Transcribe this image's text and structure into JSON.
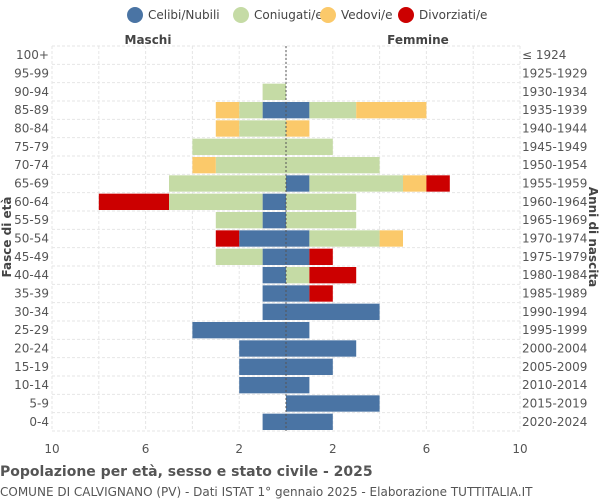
{
  "footer": {
    "title": "Popolazione per età, sesso e stato civile - 2025",
    "subtitle": "COMUNE DI CALVIGNANO (PV) - Dati ISTAT 1° gennaio 2025 - Elaborazione TUTTITALIA.IT"
  },
  "chart_data": {
    "type": "bar",
    "orientation": "horizontal-population-pyramid",
    "left_label": "Maschi",
    "right_label": "Femmine",
    "ylabel_left": "Fasce di età",
    "ylabel_right": "Anni di nascita",
    "xlim": [
      -10,
      10
    ],
    "x_ticks": [
      -10,
      -6,
      -2,
      2,
      6,
      10
    ],
    "x_tick_labels": [
      "10",
      "6",
      "2",
      "2",
      "6",
      "10"
    ],
    "grid": true,
    "legend_position": "top",
    "colors": {
      "Celibi/Nubili": "#4a74a4",
      "Coniugati/e": "#c5dba5",
      "Vedovi/e": "#fbc96a",
      "Divorziati/e": "#cc0000"
    },
    "series_order": [
      "Celibi/Nubili",
      "Coniugati/e",
      "Vedovi/e",
      "Divorziati/e"
    ],
    "age_groups": [
      "100+",
      "95-99",
      "90-94",
      "85-89",
      "80-84",
      "75-79",
      "70-74",
      "65-69",
      "60-64",
      "55-59",
      "50-54",
      "45-49",
      "40-44",
      "35-39",
      "30-34",
      "25-29",
      "20-24",
      "15-19",
      "10-14",
      "5-9",
      "0-4"
    ],
    "birth_years": [
      "≤ 1924",
      "1925-1929",
      "1930-1934",
      "1935-1939",
      "1940-1944",
      "1945-1949",
      "1950-1954",
      "1955-1959",
      "1960-1964",
      "1965-1969",
      "1970-1974",
      "1975-1979",
      "1980-1984",
      "1985-1989",
      "1990-1994",
      "1995-1999",
      "2000-2004",
      "2005-2009",
      "2010-2014",
      "2015-2019",
      "2020-2024"
    ],
    "males": {
      "Celibi/Nubili": [
        0,
        0,
        0,
        1,
        0,
        0,
        0,
        0,
        1,
        1,
        2,
        1,
        1,
        1,
        1,
        4,
        2,
        2,
        2,
        0,
        1
      ],
      "Coniugati/e": [
        0,
        0,
        1,
        1,
        2,
        4,
        3,
        5,
        4,
        2,
        0,
        2,
        0,
        0,
        0,
        0,
        0,
        0,
        0,
        0,
        0
      ],
      "Vedovi/e": [
        0,
        0,
        0,
        1,
        1,
        0,
        1,
        0,
        0,
        0,
        0,
        0,
        0,
        0,
        0,
        0,
        0,
        0,
        0,
        0,
        0
      ],
      "Divorziati/e": [
        0,
        0,
        0,
        0,
        0,
        0,
        0,
        0,
        3,
        0,
        1,
        0,
        0,
        0,
        0,
        0,
        0,
        0,
        0,
        0,
        0
      ]
    },
    "females": {
      "Celibi/Nubili": [
        0,
        0,
        0,
        1,
        0,
        0,
        0,
        1,
        0,
        0,
        1,
        1,
        0,
        1,
        4,
        1,
        3,
        2,
        1,
        4,
        2
      ],
      "Coniugati/e": [
        0,
        0,
        0,
        2,
        0,
        2,
        4,
        4,
        3,
        3,
        3,
        0,
        1,
        0,
        0,
        0,
        0,
        0,
        0,
        0,
        0
      ],
      "Vedovi/e": [
        0,
        0,
        0,
        3,
        1,
        0,
        0,
        1,
        0,
        0,
        1,
        0,
        0,
        0,
        0,
        0,
        0,
        0,
        0,
        0,
        0
      ],
      "Divorziati/e": [
        0,
        0,
        0,
        0,
        0,
        0,
        0,
        1,
        0,
        0,
        0,
        1,
        2,
        1,
        0,
        0,
        0,
        0,
        0,
        0,
        0
      ]
    }
  }
}
